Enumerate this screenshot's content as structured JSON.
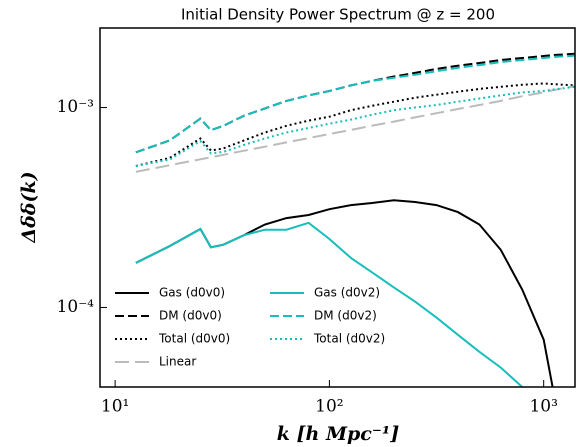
{
  "chart_data": {
    "type": "line",
    "title": "Initial Density Power Spectrum @ z = 200",
    "xlabel": "k [h Mpc⁻¹]",
    "ylabel": "Δδδ(k)",
    "xscale": "log",
    "yscale": "log",
    "xlim": [
      8.5,
      1400
    ],
    "ylim": [
      4e-05,
      0.0025
    ],
    "xticks": [
      {
        "value": 10,
        "label": "10¹"
      },
      {
        "value": 100,
        "label": "10²"
      },
      {
        "value": 1000,
        "label": "10³"
      }
    ],
    "yticks": [
      {
        "value": 0.0001,
        "label": "10⁻⁴"
      },
      {
        "value": 0.001,
        "label": "10⁻³"
      }
    ],
    "legend": "lower left",
    "x": [
      12.5,
      18,
      25,
      28,
      32,
      40,
      50,
      63,
      80,
      100,
      126,
      158,
      200,
      251,
      316,
      398,
      501,
      631,
      794,
      1000,
      1100,
      1400
    ],
    "series": [
      {
        "name": "Gas (d0v0)",
        "color": "#000000",
        "dash": "solid",
        "values": [
          0.000167,
          0.000203,
          0.000247,
          0.0002,
          0.000206,
          0.00023,
          0.00026,
          0.00028,
          0.00029,
          0.00031,
          0.000325,
          0.000333,
          0.000344,
          0.000337,
          0.000325,
          0.0003,
          0.00026,
          0.000194,
          0.000123,
          6.9e-05,
          4e-05,
          null
        ]
      },
      {
        "name": "DM (d0v0)",
        "color": "#000000",
        "dash": "dashed",
        "values": [
          0.000597,
          0.000685,
          0.00088,
          0.00077,
          0.00081,
          0.00091,
          0.00099,
          0.00108,
          0.00115,
          0.00121,
          0.00129,
          0.00136,
          0.00143,
          0.00149,
          0.00156,
          0.00162,
          0.00167,
          0.00173,
          0.00177,
          0.00181,
          0.00183,
          0.00186
        ]
      },
      {
        "name": "Total (d0v0)",
        "color": "#000000",
        "dash": "dotted",
        "values": [
          0.00051,
          0.00056,
          0.0007,
          0.00061,
          0.000625,
          0.000685,
          0.00075,
          0.00081,
          0.00086,
          0.0009,
          0.00097,
          0.00102,
          0.00107,
          0.00112,
          0.00116,
          0.0012,
          0.00124,
          0.00127,
          0.0013,
          0.00132,
          0.00131,
          0.00129
        ]
      },
      {
        "name": "Linear",
        "color": "#bbbbbb",
        "dash": "longdash",
        "values": [
          0.000477,
          0.000515,
          0.000551,
          0.000564,
          0.00058,
          0.000608,
          0.000637,
          0.000669,
          0.000703,
          0.000737,
          0.000773,
          0.000811,
          0.000851,
          0.000893,
          0.000937,
          0.000983,
          0.00103,
          0.00108,
          0.00114,
          0.00119,
          0.00122,
          0.00128
        ]
      },
      {
        "name": "Gas (d0v2)",
        "color": "#17bebb",
        "dash": "solid",
        "values": [
          0.000167,
          0.000203,
          0.000247,
          0.0002,
          0.000206,
          0.00023,
          0.000245,
          0.000245,
          0.000265,
          0.00022,
          0.000177,
          0.00015,
          0.000126,
          0.000107,
          8.9e-05,
          7.3e-05,
          6e-05,
          5e-05,
          4e-05,
          null,
          null,
          null
        ]
      },
      {
        "name": "DM (d0v2)",
        "color": "#17bebb",
        "dash": "dashed",
        "values": [
          0.000597,
          0.000685,
          0.00088,
          0.00077,
          0.00081,
          0.00091,
          0.00099,
          0.00108,
          0.00115,
          0.00121,
          0.00129,
          0.00136,
          0.00141,
          0.00146,
          0.00152,
          0.00158,
          0.00163,
          0.00169,
          0.00173,
          0.00177,
          0.00179,
          0.00182
        ]
      },
      {
        "name": "Total (d0v2)",
        "color": "#17bebb",
        "dash": "dotted",
        "values": [
          0.00051,
          0.00055,
          0.00068,
          0.00059,
          0.0006,
          0.00065,
          0.0007,
          0.00075,
          0.00079,
          0.00083,
          0.00087,
          0.00092,
          0.00097,
          0.001,
          0.00103,
          0.00107,
          0.00111,
          0.00115,
          0.00119,
          0.00121,
          0.00123,
          0.00127
        ]
      }
    ]
  }
}
